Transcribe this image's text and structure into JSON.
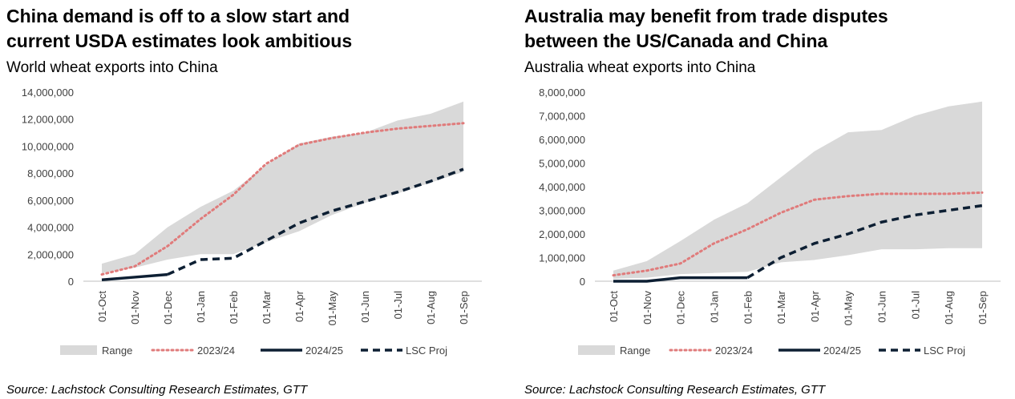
{
  "chart_data": [
    {
      "type": "line",
      "title": "China demand is off to a slow start and current USDA estimates look ambitious",
      "subtitle": "World wheat exports into China",
      "source": "Source: Lachstock Consulting Research Estimates, GTT",
      "categories": [
        "01-Oct",
        "01-Nov",
        "01-Dec",
        "01-Jan",
        "01-Feb",
        "01-Mar",
        "01-Apr",
        "01-May",
        "01-Jun",
        "01-Jul",
        "01-Aug",
        "01-Sep"
      ],
      "ylim": [
        0,
        14000000
      ],
      "yticks": [
        0,
        {
          "value": 2000000,
          "label": "2,000,000"
        },
        {
          "value": 4000000,
          "label": "4,000,000"
        },
        {
          "value": 6000000,
          "label": "6,000,000"
        },
        {
          "value": 8000000,
          "label": "8,000,000"
        },
        {
          "value": 10000000,
          "label": "10,000,000"
        },
        {
          "value": 12000000,
          "label": "12,000,000"
        },
        {
          "value": 14000000,
          "label": "14,000,000"
        }
      ],
      "series": [
        {
          "name": "Range",
          "color": "#d9d9d9",
          "values": [
            1300000,
            2000000,
            4000000,
            5500000,
            6700000,
            8600000,
            10200000,
            10700000,
            11000000,
            11900000,
            12400000,
            13300000
          ],
          "lower": [
            600000,
            1000000,
            1600000,
            2000000,
            2000000,
            2900000,
            3700000,
            4900000,
            5800000,
            6500000,
            7300000,
            8100000
          ]
        },
        {
          "name": "2023/24",
          "color": "#e07b7b",
          "values": [
            500000,
            1100000,
            2600000,
            4600000,
            6400000,
            8700000,
            10100000,
            10600000,
            11000000,
            11300000,
            11500000,
            11700000
          ]
        },
        {
          "name": "2024/25",
          "color": "#0d1f33",
          "values": [
            100000,
            300000,
            500000,
            null,
            null,
            null,
            null,
            null,
            null,
            null,
            null,
            null
          ]
        },
        {
          "name": "LSC Proj",
          "color": "#0d1f33",
          "values": [
            null,
            null,
            500000,
            1600000,
            1700000,
            3000000,
            4300000,
            5200000,
            5900000,
            6600000,
            7400000,
            8300000
          ]
        }
      ]
    },
    {
      "type": "line",
      "title": "Australia may benefit from trade disputes between the US/Canada and China",
      "subtitle": "Australia wheat exports into China",
      "source": "Source: Lachstock Consulting Research Estimates, GTT",
      "categories": [
        "01-Oct",
        "01-Nov",
        "01-Dec",
        "01-Jan",
        "01-Feb",
        "01-Mar",
        "01-Apr",
        "01-May",
        "01-Jun",
        "01-Jul",
        "01-Aug",
        "01-Sep"
      ],
      "ylim": [
        0,
        8000000
      ],
      "yticks": [
        0,
        {
          "value": 1000000,
          "label": "1,000,000"
        },
        {
          "value": 2000000,
          "label": "2,000,000"
        },
        {
          "value": 3000000,
          "label": "3,000,000"
        },
        {
          "value": 4000000,
          "label": "4,000,000"
        },
        {
          "value": 5000000,
          "label": "5,000,000"
        },
        {
          "value": 6000000,
          "label": "6,000,000"
        },
        {
          "value": 7000000,
          "label": "7,000,000"
        },
        {
          "value": 8000000,
          "label": "8,000,000"
        }
      ],
      "series": [
        {
          "name": "Range",
          "color": "#d9d9d9",
          "values": [
            450000,
            850000,
            1700000,
            2600000,
            3300000,
            4400000,
            5500000,
            6300000,
            6400000,
            7000000,
            7400000,
            7600000
          ],
          "lower": [
            100000,
            150000,
            300000,
            350000,
            400000,
            800000,
            900000,
            1100000,
            1350000,
            1350000,
            1400000,
            1400000
          ]
        },
        {
          "name": "2023/24",
          "color": "#e07b7b",
          "values": [
            250000,
            450000,
            750000,
            1600000,
            2200000,
            2900000,
            3450000,
            3600000,
            3700000,
            3700000,
            3700000,
            3750000
          ]
        },
        {
          "name": "2024/25",
          "color": "#0d1f33",
          "values": [
            0,
            0,
            150000,
            150000,
            150000,
            null,
            null,
            null,
            null,
            null,
            null,
            null
          ]
        },
        {
          "name": "LSC Proj",
          "color": "#0d1f33",
          "values": [
            null,
            null,
            null,
            null,
            150000,
            1000000,
            1600000,
            2000000,
            2500000,
            2800000,
            3000000,
            3200000
          ]
        }
      ]
    }
  ]
}
